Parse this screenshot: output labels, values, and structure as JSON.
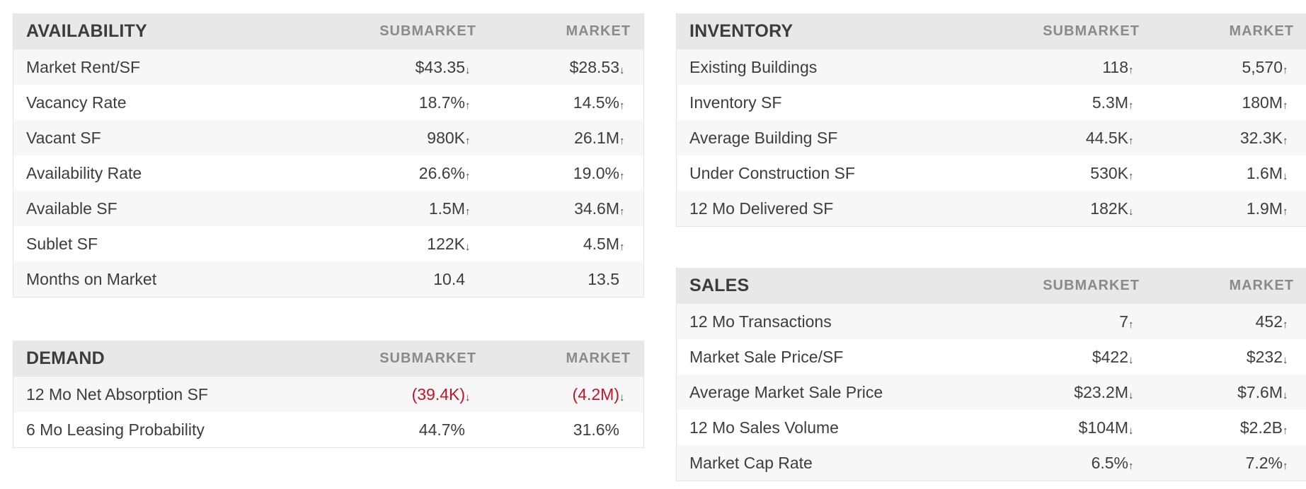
{
  "column_headers": {
    "submarket": "SUBMARKET",
    "market": "MARKET"
  },
  "panels": [
    {
      "id": "availability",
      "title": "AVAILABILITY",
      "rows": [
        {
          "label": "Market Rent/SF",
          "submarket": "$43.35",
          "sub_trend": "down",
          "market": "$28.53",
          "mkt_trend": "down"
        },
        {
          "label": "Vacancy Rate",
          "submarket": "18.7%",
          "sub_trend": "up",
          "market": "14.5%",
          "mkt_trend": "up"
        },
        {
          "label": "Vacant SF",
          "submarket": "980K",
          "sub_trend": "up",
          "market": "26.1M",
          "mkt_trend": "up"
        },
        {
          "label": "Availability Rate",
          "submarket": "26.6%",
          "sub_trend": "up",
          "market": "19.0%",
          "mkt_trend": "up"
        },
        {
          "label": "Available SF",
          "submarket": "1.5M",
          "sub_trend": "up",
          "market": "34.6M",
          "mkt_trend": "up"
        },
        {
          "label": "Sublet SF",
          "submarket": "122K",
          "sub_trend": "down",
          "market": "4.5M",
          "mkt_trend": "up"
        },
        {
          "label": "Months on Market",
          "submarket": "10.4",
          "sub_trend": "none",
          "market": "13.5",
          "mkt_trend": "none"
        }
      ]
    },
    {
      "id": "inventory",
      "title": "INVENTORY",
      "rows": [
        {
          "label": "Existing Buildings",
          "submarket": "118",
          "sub_trend": "up",
          "market": "5,570",
          "mkt_trend": "up"
        },
        {
          "label": "Inventory SF",
          "submarket": "5.3M",
          "sub_trend": "up",
          "market": "180M",
          "mkt_trend": "up"
        },
        {
          "label": "Average Building SF",
          "submarket": "44.5K",
          "sub_trend": "up",
          "market": "32.3K",
          "mkt_trend": "up"
        },
        {
          "label": "Under Construction SF",
          "submarket": "530K",
          "sub_trend": "up",
          "market": "1.6M",
          "mkt_trend": "down"
        },
        {
          "label": "12 Mo Delivered SF",
          "submarket": "182K",
          "sub_trend": "down",
          "market": "1.9M",
          "mkt_trend": "up"
        }
      ]
    },
    {
      "id": "demand",
      "title": "DEMAND",
      "rows": [
        {
          "label": "12 Mo Net Absorption SF",
          "submarket": "(39.4K)",
          "sub_trend": "down",
          "market": "(4.2M)",
          "mkt_trend": "down",
          "negative": true
        },
        {
          "label": "6 Mo Leasing Probability",
          "submarket": "44.7%",
          "sub_trend": "none",
          "market": "31.6%",
          "mkt_trend": "none"
        }
      ]
    },
    {
      "id": "sales",
      "title": "SALES",
      "rows": [
        {
          "label": "12 Mo Transactions",
          "submarket": "7",
          "sub_trend": "up",
          "market": "452",
          "mkt_trend": "up"
        },
        {
          "label": "Market Sale Price/SF",
          "submarket": "$422",
          "sub_trend": "down",
          "market": "$232",
          "mkt_trend": "down"
        },
        {
          "label": "Average Market Sale Price",
          "submarket": "$23.2M",
          "sub_trend": "down",
          "market": "$7.6M",
          "mkt_trend": "down"
        },
        {
          "label": "12 Mo Sales Volume",
          "submarket": "$104M",
          "sub_trend": "down",
          "market": "$2.2B",
          "mkt_trend": "up"
        },
        {
          "label": "Market Cap Rate",
          "submarket": "6.5%",
          "sub_trend": "up",
          "market": "7.2%",
          "mkt_trend": "up"
        }
      ]
    }
  ],
  "colors": {
    "negative": "#c0152a",
    "header_bg": "#e8e8e8",
    "stripe_bg": "#f7f7f7"
  },
  "icons": {
    "up": "arrow-up-icon",
    "down": "arrow-down-icon"
  }
}
